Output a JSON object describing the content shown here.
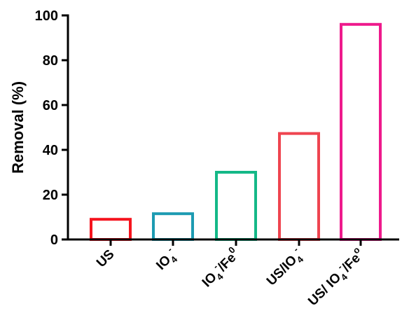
{
  "chart_data": {
    "type": "bar",
    "ylabel": "Removal (%)",
    "xlabel": "",
    "ylim": [
      0,
      100
    ],
    "yticks": [
      0,
      20,
      40,
      60,
      80,
      100
    ],
    "grid": false,
    "bar_style": "outline",
    "categories": [
      {
        "parts": [
          [
            "",
            "US"
          ]
        ],
        "value": 9,
        "color": "#f5141e"
      },
      {
        "parts": [
          [
            "",
            "IO"
          ],
          [
            "sub",
            "4"
          ],
          [
            "sup",
            "-"
          ]
        ],
        "value": 11.5,
        "color": "#1d9bb2"
      },
      {
        "parts": [
          [
            "",
            "IO"
          ],
          [
            "sub",
            "4"
          ],
          [
            "sup",
            "-"
          ],
          [
            "",
            "/Fe"
          ],
          [
            "sup",
            "0"
          ]
        ],
        "value": 30,
        "color": "#14b887"
      },
      {
        "parts": [
          [
            "",
            "US/IO"
          ],
          [
            "sub",
            "4"
          ],
          [
            "sup",
            "-"
          ]
        ],
        "value": 47.3,
        "color": "#ef4550"
      },
      {
        "parts": [
          [
            "",
            "US/ IO"
          ],
          [
            "sub",
            "4"
          ],
          [
            "sup",
            "-"
          ],
          [
            "",
            "/Fe"
          ],
          [
            "sup",
            "o"
          ]
        ],
        "value": 96,
        "color": "#ee1a8c"
      }
    ]
  }
}
